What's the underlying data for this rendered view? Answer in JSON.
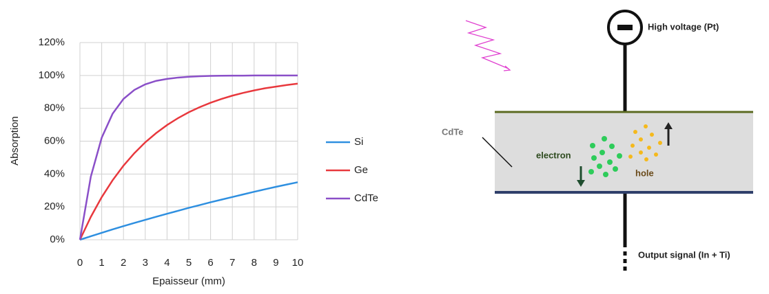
{
  "chart_data": {
    "type": "line",
    "x": [
      0,
      0.5,
      1,
      1.5,
      2,
      2.5,
      3,
      3.5,
      4,
      4.5,
      5,
      5.5,
      6,
      6.5,
      7,
      7.5,
      8,
      8.5,
      9,
      9.5,
      10
    ],
    "series": [
      {
        "name": "Si",
        "color": "#2e8fe0",
        "values": [
          0,
          2.1,
          4.2,
          6.3,
          8.3,
          10.2,
          12.1,
          14.0,
          15.8,
          17.6,
          19.4,
          21.1,
          22.8,
          24.4,
          26.0,
          27.6,
          29.2,
          30.7,
          32.2,
          33.6,
          35.0
        ]
      },
      {
        "name": "Ge",
        "color": "#e8383d",
        "values": [
          0,
          13.9,
          25.9,
          36.2,
          45.1,
          52.7,
          59.3,
          64.9,
          69.8,
          74.0,
          77.6,
          80.7,
          83.4,
          85.7,
          87.7,
          89.4,
          90.9,
          92.2,
          93.2,
          94.2,
          95.0
        ]
      },
      {
        "name": "CdTe",
        "color": "#8a4fc8",
        "values": [
          0,
          38.4,
          62.1,
          76.7,
          85.7,
          91.2,
          94.6,
          96.7,
          97.9,
          98.7,
          99.2,
          99.5,
          99.7,
          99.8,
          99.9,
          99.9,
          100,
          100,
          100,
          100,
          100
        ]
      }
    ],
    "xlabel": "Epaisseur (mm)",
    "ylabel": "Absorption",
    "xlim": [
      0,
      10
    ],
    "xticks": [
      0,
      1,
      2,
      3,
      4,
      5,
      6,
      7,
      8,
      9,
      10
    ],
    "ylim": [
      0,
      120
    ],
    "yticks": [
      {
        "value": 0,
        "label": "0%"
      },
      {
        "value": 20,
        "label": "20%"
      },
      {
        "value": 40,
        "label": "40%"
      },
      {
        "value": 60,
        "label": "60%"
      },
      {
        "value": 80,
        "label": "80%"
      },
      {
        "value": 100,
        "label": "100%"
      },
      {
        "value": 120,
        "label": "120%"
      }
    ],
    "grid": true,
    "legend": "right"
  },
  "diagram": {
    "electrode_top": "High voltage (Pt)",
    "material": "CdTe",
    "electron": "electron",
    "hole": "hole",
    "electrode_bottom": "Output signal (In + Ti)"
  }
}
